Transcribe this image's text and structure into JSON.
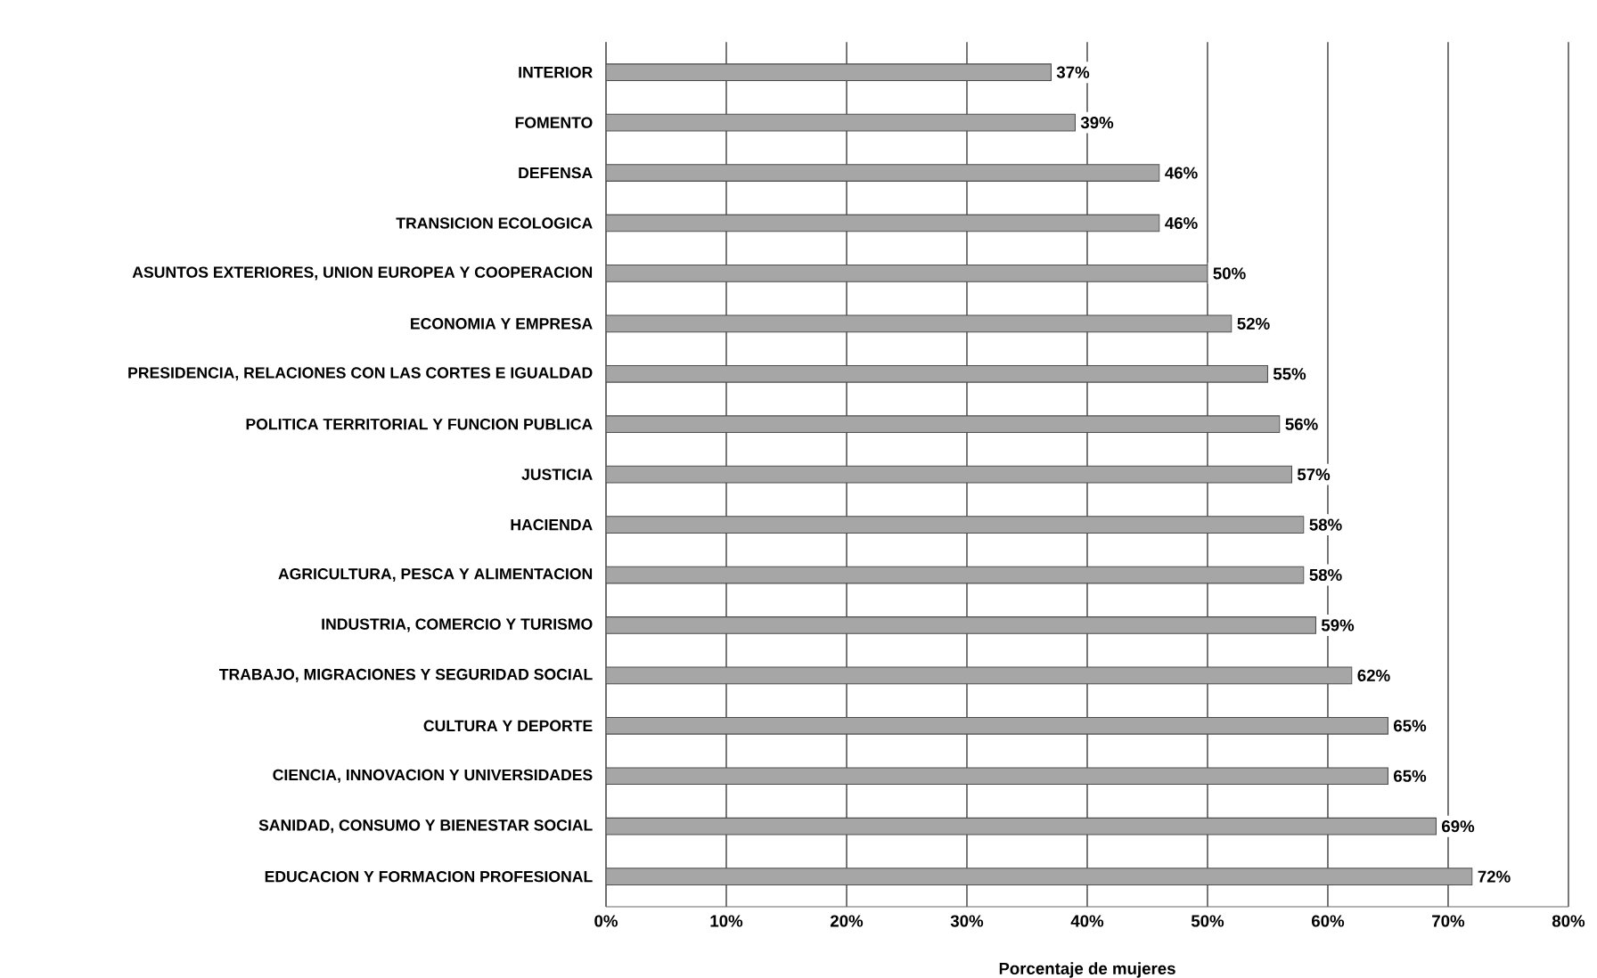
{
  "chart_data": {
    "type": "bar",
    "orientation": "horizontal",
    "xlabel": "Porcentaje de mujeres",
    "categories": [
      "INTERIOR",
      "FOMENTO",
      "DEFENSA",
      "TRANSICION ECOLOGICA",
      "ASUNTOS EXTERIORES, UNION EUROPEA Y COOPERACION",
      "ECONOMIA Y EMPRESA",
      "PRESIDENCIA, RELACIONES CON LAS CORTES E IGUALDAD",
      "POLITICA TERRITORIAL Y FUNCION PUBLICA",
      "JUSTICIA",
      "HACIENDA",
      "AGRICULTURA, PESCA Y ALIMENTACION",
      "INDUSTRIA, COMERCIO Y TURISMO",
      "TRABAJO, MIGRACIONES Y SEGURIDAD SOCIAL",
      "CULTURA Y DEPORTE",
      "CIENCIA, INNOVACION Y UNIVERSIDADES",
      "SANIDAD, CONSUMO Y BIENESTAR SOCIAL",
      "EDUCACION Y FORMACION PROFESIONAL"
    ],
    "values": [
      37,
      39,
      46,
      46,
      50,
      52,
      55,
      56,
      57,
      58,
      58,
      59,
      62,
      65,
      65,
      69,
      72
    ],
    "value_labels": [
      "37%",
      "39%",
      "46%",
      "46%",
      "50%",
      "52%",
      "55%",
      "56%",
      "57%",
      "58%",
      "58%",
      "59%",
      "62%",
      "65%",
      "65%",
      "69%",
      "72%"
    ],
    "color": "#a6a6a6",
    "xlim": [
      0,
      80
    ],
    "xticks": [
      {
        "value": 0,
        "label": "0%"
      },
      {
        "value": 10,
        "label": "10%"
      },
      {
        "value": 20,
        "label": "20%"
      },
      {
        "value": 30,
        "label": "30%"
      },
      {
        "value": 40,
        "label": "40%"
      },
      {
        "value": 50,
        "label": "50%"
      },
      {
        "value": 60,
        "label": "60%"
      },
      {
        "value": 70,
        "label": "70%"
      },
      {
        "value": 80,
        "label": "80%"
      }
    ],
    "grid": "x"
  }
}
